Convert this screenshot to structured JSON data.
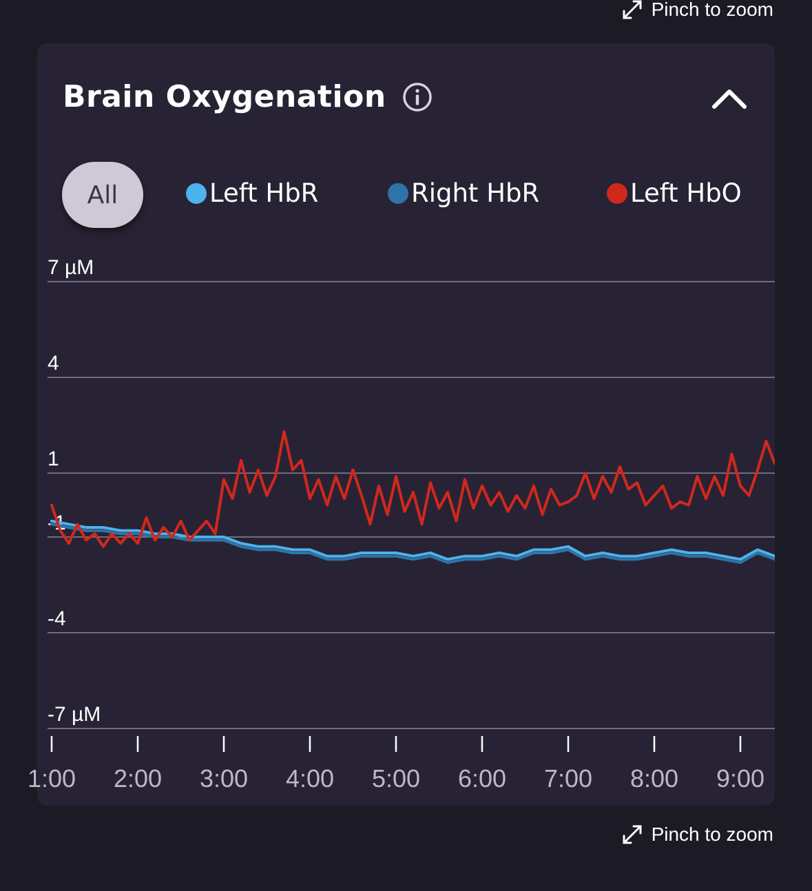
{
  "pinch": {
    "label": "Pinch to zoom"
  },
  "card": {
    "title": "Brain Oxygenation",
    "filter_all": "All"
  },
  "legend": [
    {
      "label": "Left HbR",
      "color": "#4cb3ec"
    },
    {
      "label": "Right HbR",
      "color": "#2e74aa"
    },
    {
      "label": "Left HbO",
      "color": "#d1281d"
    }
  ],
  "chart_data": {
    "type": "line",
    "ylim": [
      -7,
      7
    ],
    "y_ticks": [
      7,
      4,
      1,
      -1,
      -4,
      -7
    ],
    "y_tick_labels": [
      "7 µM",
      "4",
      "1",
      "-1",
      "-4",
      "-7 µM"
    ],
    "xlim": [
      1.0,
      9.4
    ],
    "x_ticks": [
      1,
      2,
      3,
      4,
      5,
      6,
      7,
      8,
      9
    ],
    "x_tick_labels": [
      "1:00",
      "2:00",
      "3:00",
      "4:00",
      "5:00",
      "6:00",
      "7:00",
      "8:00",
      "9:00"
    ],
    "grid": true,
    "series": [
      {
        "name": "Left HbR",
        "color": "#4cb3ec",
        "points": [
          [
            1.0,
            -0.5
          ],
          [
            1.2,
            -0.6
          ],
          [
            1.4,
            -0.7
          ],
          [
            1.6,
            -0.7
          ],
          [
            1.8,
            -0.8
          ],
          [
            2.0,
            -0.8
          ],
          [
            2.2,
            -0.9
          ],
          [
            2.4,
            -0.9
          ],
          [
            2.6,
            -1.0
          ],
          [
            2.8,
            -1.0
          ],
          [
            3.0,
            -1.0
          ],
          [
            3.2,
            -1.2
          ],
          [
            3.4,
            -1.3
          ],
          [
            3.6,
            -1.3
          ],
          [
            3.8,
            -1.4
          ],
          [
            4.0,
            -1.4
          ],
          [
            4.2,
            -1.6
          ],
          [
            4.4,
            -1.6
          ],
          [
            4.6,
            -1.5
          ],
          [
            4.8,
            -1.5
          ],
          [
            5.0,
            -1.5
          ],
          [
            5.2,
            -1.6
          ],
          [
            5.4,
            -1.5
          ],
          [
            5.6,
            -1.7
          ],
          [
            5.8,
            -1.6
          ],
          [
            6.0,
            -1.6
          ],
          [
            6.2,
            -1.5
          ],
          [
            6.4,
            -1.6
          ],
          [
            6.6,
            -1.4
          ],
          [
            6.8,
            -1.4
          ],
          [
            7.0,
            -1.3
          ],
          [
            7.2,
            -1.6
          ],
          [
            7.4,
            -1.5
          ],
          [
            7.6,
            -1.6
          ],
          [
            7.8,
            -1.6
          ],
          [
            8.0,
            -1.5
          ],
          [
            8.2,
            -1.4
          ],
          [
            8.4,
            -1.5
          ],
          [
            8.6,
            -1.5
          ],
          [
            8.8,
            -1.6
          ],
          [
            9.0,
            -1.7
          ],
          [
            9.2,
            -1.4
          ],
          [
            9.4,
            -1.6
          ]
        ]
      },
      {
        "name": "Right HbR",
        "color": "#2e74aa",
        "points": [
          [
            1.0,
            -0.6
          ],
          [
            1.2,
            -0.7
          ],
          [
            1.4,
            -0.8
          ],
          [
            1.6,
            -0.8
          ],
          [
            1.8,
            -0.9
          ],
          [
            2.0,
            -0.9
          ],
          [
            2.2,
            -1.0
          ],
          [
            2.4,
            -1.0
          ],
          [
            2.6,
            -1.1
          ],
          [
            2.8,
            -1.1
          ],
          [
            3.0,
            -1.1
          ],
          [
            3.2,
            -1.3
          ],
          [
            3.4,
            -1.4
          ],
          [
            3.6,
            -1.4
          ],
          [
            3.8,
            -1.5
          ],
          [
            4.0,
            -1.5
          ],
          [
            4.2,
            -1.7
          ],
          [
            4.4,
            -1.7
          ],
          [
            4.6,
            -1.6
          ],
          [
            4.8,
            -1.6
          ],
          [
            5.0,
            -1.6
          ],
          [
            5.2,
            -1.7
          ],
          [
            5.4,
            -1.6
          ],
          [
            5.6,
            -1.8
          ],
          [
            5.8,
            -1.7
          ],
          [
            6.0,
            -1.7
          ],
          [
            6.2,
            -1.6
          ],
          [
            6.4,
            -1.7
          ],
          [
            6.6,
            -1.5
          ],
          [
            6.8,
            -1.5
          ],
          [
            7.0,
            -1.4
          ],
          [
            7.2,
            -1.7
          ],
          [
            7.4,
            -1.6
          ],
          [
            7.6,
            -1.7
          ],
          [
            7.8,
            -1.7
          ],
          [
            8.0,
            -1.6
          ],
          [
            8.2,
            -1.5
          ],
          [
            8.4,
            -1.6
          ],
          [
            8.6,
            -1.6
          ],
          [
            8.8,
            -1.7
          ],
          [
            9.0,
            -1.8
          ],
          [
            9.2,
            -1.5
          ],
          [
            9.4,
            -1.7
          ]
        ]
      },
      {
        "name": "Left HbO",
        "color": "#d1281d",
        "points": [
          [
            1.0,
            0.0
          ],
          [
            1.1,
            -0.8
          ],
          [
            1.2,
            -1.2
          ],
          [
            1.3,
            -0.6
          ],
          [
            1.4,
            -1.1
          ],
          [
            1.5,
            -0.9
          ],
          [
            1.6,
            -1.3
          ],
          [
            1.7,
            -0.9
          ],
          [
            1.8,
            -1.2
          ],
          [
            1.9,
            -0.9
          ],
          [
            2.0,
            -1.2
          ],
          [
            2.1,
            -0.4
          ],
          [
            2.2,
            -1.1
          ],
          [
            2.3,
            -0.7
          ],
          [
            2.4,
            -1.0
          ],
          [
            2.5,
            -0.5
          ],
          [
            2.6,
            -1.1
          ],
          [
            2.7,
            -0.8
          ],
          [
            2.8,
            -0.5
          ],
          [
            2.9,
            -0.9
          ],
          [
            3.0,
            0.8
          ],
          [
            3.1,
            0.2
          ],
          [
            3.2,
            1.4
          ],
          [
            3.3,
            0.4
          ],
          [
            3.4,
            1.1
          ],
          [
            3.5,
            0.3
          ],
          [
            3.6,
            0.9
          ],
          [
            3.7,
            2.3
          ],
          [
            3.8,
            1.1
          ],
          [
            3.9,
            1.4
          ],
          [
            4.0,
            0.2
          ],
          [
            4.1,
            0.8
          ],
          [
            4.2,
            0.0
          ],
          [
            4.3,
            0.9
          ],
          [
            4.4,
            0.2
          ],
          [
            4.5,
            1.1
          ],
          [
            4.6,
            0.3
          ],
          [
            4.7,
            -0.6
          ],
          [
            4.8,
            0.6
          ],
          [
            4.9,
            -0.3
          ],
          [
            5.0,
            0.9
          ],
          [
            5.1,
            -0.2
          ],
          [
            5.2,
            0.4
          ],
          [
            5.3,
            -0.6
          ],
          [
            5.4,
            0.7
          ],
          [
            5.5,
            -0.1
          ],
          [
            5.6,
            0.4
          ],
          [
            5.7,
            -0.5
          ],
          [
            5.8,
            0.8
          ],
          [
            5.9,
            -0.1
          ],
          [
            6.0,
            0.6
          ],
          [
            6.1,
            0.0
          ],
          [
            6.2,
            0.4
          ],
          [
            6.3,
            -0.2
          ],
          [
            6.4,
            0.3
          ],
          [
            6.5,
            -0.1
          ],
          [
            6.6,
            0.6
          ],
          [
            6.7,
            -0.3
          ],
          [
            6.8,
            0.5
          ],
          [
            6.9,
            0.0
          ],
          [
            7.0,
            0.1
          ],
          [
            7.1,
            0.3
          ],
          [
            7.2,
            1.0
          ],
          [
            7.3,
            0.2
          ],
          [
            7.4,
            0.9
          ],
          [
            7.5,
            0.4
          ],
          [
            7.6,
            1.2
          ],
          [
            7.7,
            0.5
          ],
          [
            7.8,
            0.7
          ],
          [
            7.9,
            0.0
          ],
          [
            8.0,
            0.3
          ],
          [
            8.1,
            0.6
          ],
          [
            8.2,
            -0.1
          ],
          [
            8.3,
            0.1
          ],
          [
            8.4,
            0.0
          ],
          [
            8.5,
            0.9
          ],
          [
            8.6,
            0.2
          ],
          [
            8.7,
            0.9
          ],
          [
            8.8,
            0.3
          ],
          [
            8.9,
            1.6
          ],
          [
            9.0,
            0.6
          ],
          [
            9.1,
            0.3
          ],
          [
            9.2,
            1.1
          ],
          [
            9.3,
            2.0
          ],
          [
            9.4,
            1.3
          ]
        ]
      }
    ]
  }
}
